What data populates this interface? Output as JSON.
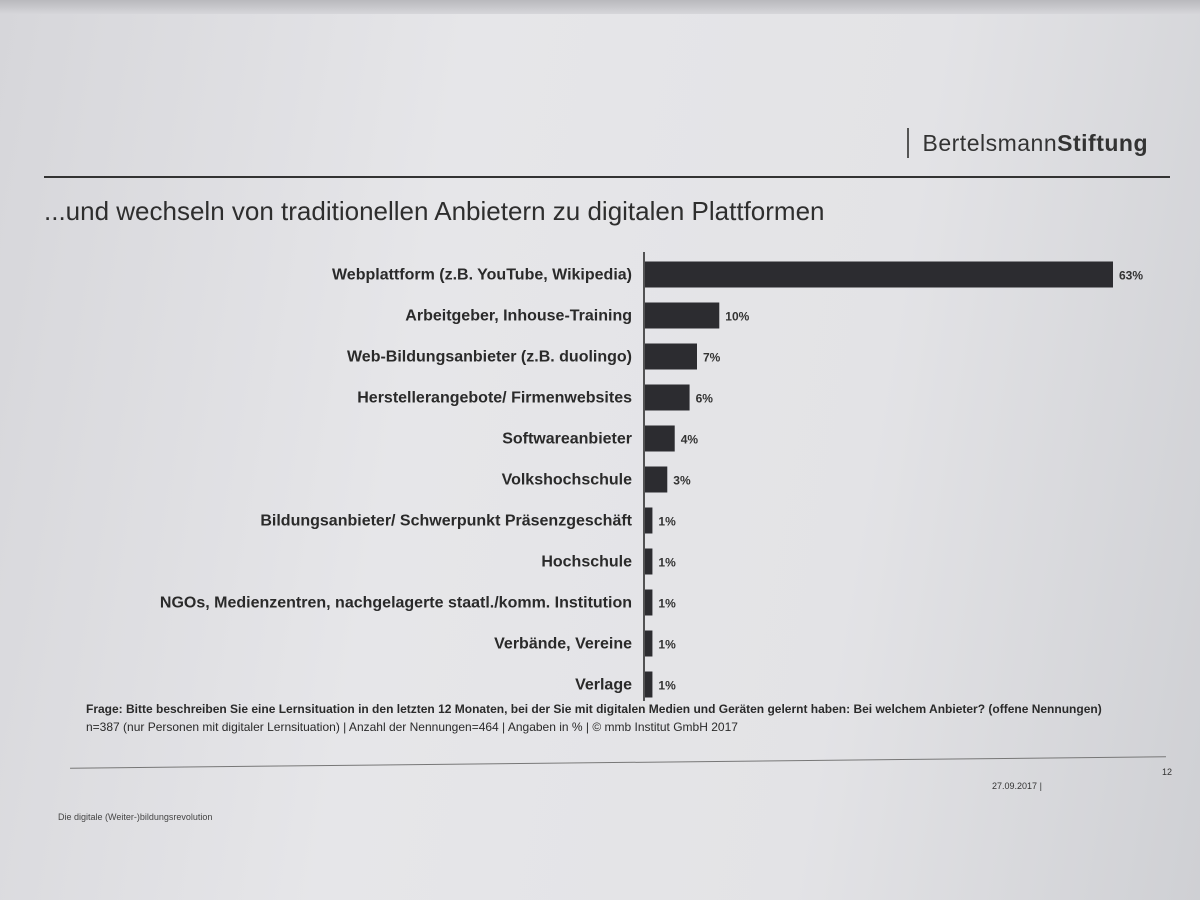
{
  "header": {
    "logo_text_regular": "Bertelsmann",
    "logo_text_bold": "Stiftung"
  },
  "slide": {
    "title": "...und wechseln von traditionellen Anbietern zu digitalen Plattformen",
    "date": "27.09.2017",
    "date_separator": "|",
    "page_number": "12",
    "footer_text": "Die digitale (Weiter-)bildungsrevolution"
  },
  "footnote": {
    "question": "Frage: Bitte beschreiben Sie eine Lernsituation in den letzten 12 Monaten, bei der Sie mit digitalen Medien und Geräten gelernt haben: Bei welchem Anbieter? (offene Nennungen)",
    "sample": "n=387 (nur Personen mit digitaler Lernsituation) | Anzahl der Nennungen=464 | Angaben in % | © mmb Institut GmbH 2017"
  },
  "colors": {
    "bar": "#2c2c30",
    "axis": "#222222"
  },
  "chart_data": {
    "type": "bar",
    "orientation": "horizontal",
    "title": "...und wechseln von traditionellen Anbietern zu digitalen Plattformen",
    "categories": [
      "Webplattform (z.B. YouTube, Wikipedia)",
      "Arbeitgeber, Inhouse-Training",
      "Web-Bildungsanbieter (z.B. duolingo)",
      "Herstellerangebote/ Firmenwebsites",
      "Softwareanbieter",
      "Volkshochschule",
      "Bildungsanbieter/ Schwerpunkt Präsenzgeschäft",
      "Hochschule",
      "NGOs, Medienzentren, nachgelagerte staatl./komm. Institution",
      "Verbände, Vereine",
      "Verlage"
    ],
    "values": [
      63,
      10,
      7,
      6,
      4,
      3,
      1,
      1,
      1,
      1,
      1
    ],
    "value_labels": [
      "63%",
      "10%",
      "7%",
      "6%",
      "4%",
      "3%",
      "1%",
      "1%",
      "1%",
      "1%",
      "1%"
    ],
    "unit": "%",
    "xlim": [
      0,
      63
    ],
    "grid": false,
    "legend": "none"
  }
}
